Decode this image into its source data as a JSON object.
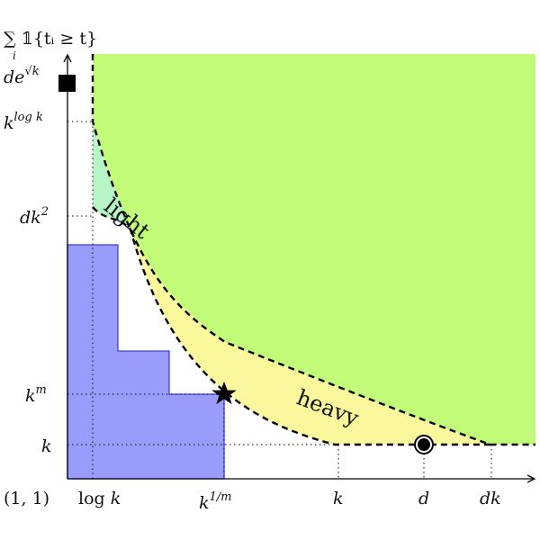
{
  "diagram": {
    "y_axis_label": "∑ 𝟙{tᵢ ≥ t}",
    "y_axis_label_sub": "i",
    "origin_label": "(1, 1)",
    "x_ticks": [
      "log k",
      "k^{1/m}",
      "k",
      "d",
      "dk"
    ],
    "y_ticks": [
      "de^{√k}",
      "k^{log k}",
      "dk²",
      "k^m",
      "k"
    ],
    "region_labels": {
      "light": "light",
      "heavy": "heavy"
    },
    "colors": {
      "green_region": "#c1fb78",
      "light_region": "#b7f5c6",
      "heavy_region": "#fbf79d",
      "blue_region": "#9a9cfb",
      "blue_edge": "#3b3ef0"
    },
    "markers": {
      "square": "filled-square",
      "star": "star",
      "circle": "circled-dot"
    }
  }
}
